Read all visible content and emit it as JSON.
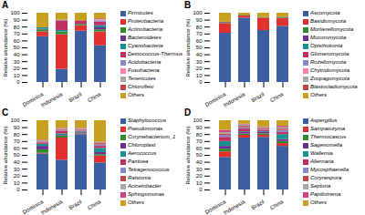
{
  "chart_data": [
    {
      "type": "bar",
      "title": "A",
      "ylabel": "Relative abundance (%)",
      "stacked": true,
      "legend": "right",
      "categories": [
        "Dominica",
        "Indonesia",
        "Brazil",
        "China"
      ],
      "ylim": [
        0,
        100
      ],
      "yticks": [
        0,
        10,
        20,
        30,
        40,
        50,
        60,
        70,
        80,
        90,
        100
      ],
      "series": [
        {
          "name": "Firmicutes",
          "color": "#3B5FA0",
          "values": [
            66,
            19,
            74,
            53
          ]
        },
        {
          "name": "Proteobacteria",
          "color": "#E03030",
          "values": [
            7,
            50,
            8,
            20
          ]
        },
        {
          "name": "Actinobacteria",
          "color": "#2E8B2E",
          "values": [
            3,
            4,
            2,
            3
          ]
        },
        {
          "name": "Bacteroidetes",
          "color": "#6A3090",
          "values": [
            1,
            0,
            0,
            3
          ]
        },
        {
          "name": "Cyanobacteria",
          "color": "#1A9090",
          "values": [
            2,
            2,
            0,
            3
          ]
        },
        {
          "name": "Deinococcus-Thermus",
          "color": "#C03060",
          "values": [
            0,
            14,
            5,
            5
          ]
        },
        {
          "name": "Acidobacteria",
          "color": "#8888C0",
          "values": [
            0,
            1,
            0,
            2
          ]
        },
        {
          "name": "Fusobacteria",
          "color": "#FF80B0",
          "values": [
            0,
            0,
            0,
            1
          ]
        },
        {
          "name": "Tenericutes",
          "color": "#A8A8A8",
          "values": [
            0,
            0,
            0,
            1
          ]
        },
        {
          "name": "Chloroflexi",
          "color": "#C04848",
          "values": [
            0,
            0,
            0,
            1
          ]
        },
        {
          "name": "Others",
          "color": "#C8A020",
          "values": [
            21,
            10,
            11,
            8
          ]
        }
      ]
    },
    {
      "type": "bar",
      "title": "B",
      "ylabel": "Relative abundance (%)",
      "stacked": true,
      "legend": "right",
      "categories": [
        "Dominica",
        "Indonesia",
        "Brazil",
        "China"
      ],
      "ylim": [
        0,
        100
      ],
      "yticks": [
        0,
        10,
        20,
        30,
        40,
        50,
        60,
        70,
        80,
        90,
        100
      ],
      "series": [
        {
          "name": "Ascomycota",
          "color": "#3B5FA0",
          "values": [
            71,
            93,
            75,
            81
          ]
        },
        {
          "name": "Basidiomycota",
          "color": "#E03030",
          "values": [
            14,
            3,
            18,
            11
          ]
        },
        {
          "name": "Mortierellomycota",
          "color": "#2E8B2E",
          "values": [
            1,
            1,
            1,
            1
          ]
        },
        {
          "name": "Mucoromycota",
          "color": "#6A3090",
          "values": [
            1,
            0,
            0,
            1
          ]
        },
        {
          "name": "Opisthokonta",
          "color": "#1A9090",
          "values": [
            0,
            0,
            0,
            0
          ]
        },
        {
          "name": "Glomeromycota",
          "color": "#C03060",
          "values": [
            0,
            0,
            0,
            0
          ]
        },
        {
          "name": "Rozellomycota",
          "color": "#8888C0",
          "values": [
            0,
            0,
            0,
            0
          ]
        },
        {
          "name": "Chytridiomycota",
          "color": "#FF80B0",
          "values": [
            0,
            0,
            0,
            0
          ]
        },
        {
          "name": "Zoopagomycota",
          "color": "#A8A8A8",
          "values": [
            0,
            0,
            0,
            0
          ]
        },
        {
          "name": "Blastocladiomycota",
          "color": "#C04848",
          "values": [
            0,
            0,
            0,
            0
          ]
        },
        {
          "name": "Others",
          "color": "#C8A020",
          "values": [
            13,
            3,
            6,
            6
          ]
        }
      ]
    },
    {
      "type": "bar",
      "title": "C",
      "ylabel": "Relative abundance (%)",
      "stacked": true,
      "legend": "right",
      "categories": [
        "Dominica",
        "Indonesia",
        "Brazil",
        "China"
      ],
      "ylim": [
        0,
        100
      ],
      "yticks": [
        0,
        10,
        20,
        30,
        40,
        50,
        60,
        70,
        80,
        90,
        100
      ],
      "series": [
        {
          "name": "Staphylococcus",
          "color": "#3B5FA0",
          "values": [
            52,
            43,
            80,
            39
          ]
        },
        {
          "name": "Pseudomonas",
          "color": "#E03030",
          "values": [
            1,
            32,
            1,
            10
          ]
        },
        {
          "name": "Corynebacterium_1",
          "color": "#2E8B2E",
          "values": [
            5,
            3,
            1,
            2
          ]
        },
        {
          "name": "Chloroplast",
          "color": "#6A3090",
          "values": [
            5,
            1,
            1,
            3
          ]
        },
        {
          "name": "Aerococcus",
          "color": "#1A9090",
          "values": [
            3,
            2,
            1,
            6
          ]
        },
        {
          "name": "Pantoea",
          "color": "#C03060",
          "values": [
            2,
            4,
            1,
            3
          ]
        },
        {
          "name": "Tetragenococcus",
          "color": "#8888C0",
          "values": [
            1,
            1,
            1,
            2
          ]
        },
        {
          "name": "Ralstonia",
          "color": "#C04848",
          "values": [
            1,
            1,
            1,
            2
          ]
        },
        {
          "name": "Acinetobacter",
          "color": "#A8A8A8",
          "values": [
            1,
            1,
            1,
            1
          ]
        },
        {
          "name": "Sphingomonas",
          "color": "#D04080",
          "values": [
            1,
            1,
            1,
            1
          ]
        },
        {
          "name": "Others",
          "color": "#C8A020",
          "values": [
            28,
            11,
            11,
            31
          ]
        }
      ]
    },
    {
      "type": "bar",
      "title": "D",
      "ylabel": "Relative abundance (%)",
      "stacked": true,
      "legend": "right",
      "categories": [
        "Dominica",
        "Indonesia",
        "Brazil",
        "China"
      ],
      "ylim": [
        0,
        100
      ],
      "yticks": [
        0,
        10,
        20,
        30,
        40,
        50,
        60,
        70,
        80,
        90,
        100
      ],
      "series": [
        {
          "name": "Aspergillus",
          "color": "#3B5FA0",
          "values": [
            47,
            75,
            76,
            63
          ]
        },
        {
          "name": "Sampaiozyma",
          "color": "#E03030",
          "values": [
            8,
            4,
            3,
            4
          ]
        },
        {
          "name": "Thermocascus",
          "color": "#2E8B2E",
          "values": [
            4,
            2,
            2,
            3
          ]
        },
        {
          "name": "Sagenomella",
          "color": "#6A3090",
          "values": [
            4,
            2,
            2,
            3
          ]
        },
        {
          "name": "Wallemia",
          "color": "#1A9090",
          "values": [
            7,
            1,
            1,
            7
          ]
        },
        {
          "name": "Alternaria",
          "color": "#C03060",
          "values": [
            6,
            4,
            2,
            3
          ]
        },
        {
          "name": "Mycosphaerella",
          "color": "#8888C0",
          "values": [
            3,
            2,
            1,
            3
          ]
        },
        {
          "name": "Corynespora",
          "color": "#C04848",
          "values": [
            2,
            2,
            2,
            2
          ]
        },
        {
          "name": "Septoria",
          "color": "#A8A8A8",
          "values": [
            2,
            2,
            1,
            2
          ]
        },
        {
          "name": "Papiliotrema",
          "color": "#D04080",
          "values": [
            3,
            1,
            1,
            2
          ]
        },
        {
          "name": "Others",
          "color": "#C8A020",
          "values": [
            14,
            5,
            9,
            8
          ]
        }
      ]
    }
  ]
}
